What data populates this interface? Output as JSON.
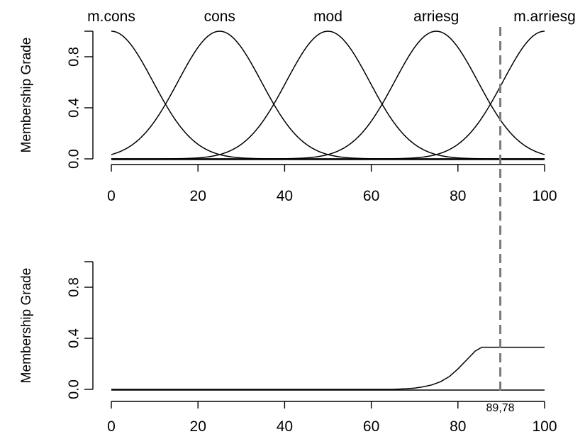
{
  "chart_data": [
    {
      "type": "line",
      "ylabel": "Membership Grade",
      "xlim": [
        0,
        100
      ],
      "ylim": [
        0,
        1
      ],
      "x_ticks": [
        "0",
        "20",
        "40",
        "60",
        "80",
        "100"
      ],
      "y_ticks": [
        "0.0",
        "0.4",
        "0.8"
      ],
      "grid": false,
      "series": [
        {
          "name": "m.cons",
          "shape": "gaussian",
          "center": 0,
          "sigma": 9.6
        },
        {
          "name": "cons",
          "shape": "gaussian",
          "center": 25,
          "sigma": 9.6
        },
        {
          "name": "mod",
          "shape": "gaussian",
          "center": 50,
          "sigma": 9.6
        },
        {
          "name": "arriesg",
          "shape": "gaussian",
          "center": 75,
          "sigma": 9.6
        },
        {
          "name": "m.arriesg",
          "shape": "gaussian",
          "center": 100,
          "sigma": 9.6
        }
      ],
      "reference_line": {
        "x": 89.78,
        "style": "dashed",
        "color": "#7a7a7a"
      }
    },
    {
      "type": "line",
      "ylabel": "Membership Grade",
      "xlim": [
        0,
        100
      ],
      "ylim": [
        0,
        1
      ],
      "x_ticks": [
        "0",
        "20",
        "40",
        "60",
        "80",
        "100"
      ],
      "y_ticks": [
        "0.0",
        "0.4",
        "0.8"
      ],
      "grid": false,
      "series": [
        {
          "x": [
            0,
            65,
            68,
            70,
            72,
            74,
            76,
            78,
            80,
            82,
            84,
            85.5,
            90,
            100
          ],
          "y": [
            0,
            0,
            0.005,
            0.01,
            0.02,
            0.035,
            0.06,
            0.1,
            0.16,
            0.23,
            0.3,
            0.33,
            0.33,
            0.33
          ]
        }
      ],
      "annotation": {
        "x": 89.78,
        "text": "89,78"
      }
    }
  ]
}
